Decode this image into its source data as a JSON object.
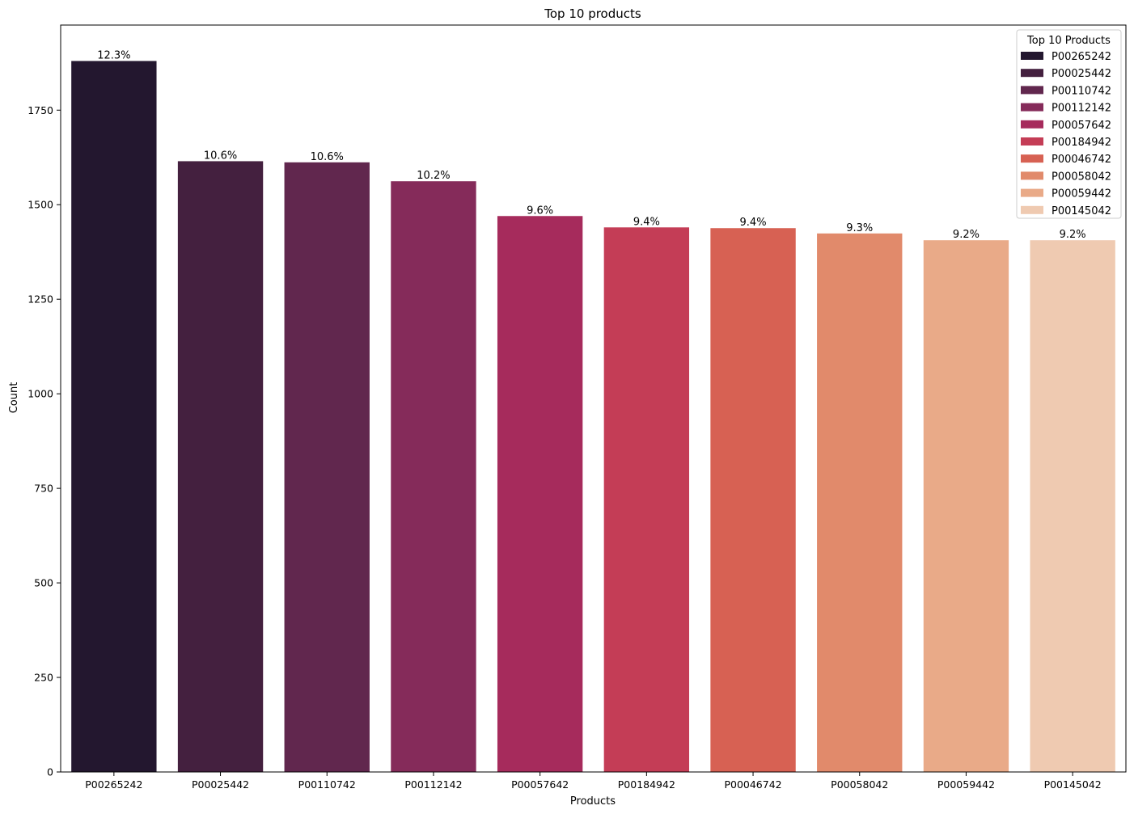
{
  "chart_data": {
    "type": "bar",
    "title": "Top 10 products",
    "xlabel": "Products",
    "ylabel": "Count",
    "ylim": [
      0,
      1975
    ],
    "yticks": [
      0,
      250,
      500,
      750,
      1000,
      1250,
      1500,
      1750
    ],
    "grid": false,
    "legend": {
      "title": "Top 10 Products",
      "placement": "top-right"
    },
    "categories": [
      "P00265242",
      "P00025442",
      "P00110742",
      "P00112142",
      "P00057642",
      "P00184942",
      "P00046742",
      "P00058042",
      "P00059442",
      "P00145042"
    ],
    "values": [
      1880,
      1615,
      1612,
      1562,
      1470,
      1440,
      1438,
      1424,
      1406,
      1406
    ],
    "data_labels": [
      "12.3%",
      "10.6%",
      "10.6%",
      "10.2%",
      "9.6%",
      "9.4%",
      "9.4%",
      "9.3%",
      "9.2%",
      "9.2%"
    ],
    "colors": [
      "#23172f",
      "#44203f",
      "#61274e",
      "#852b5a",
      "#a62b5c",
      "#c43d56",
      "#d76153",
      "#e18a6b",
      "#e9aa88",
      "#efcab1"
    ]
  }
}
